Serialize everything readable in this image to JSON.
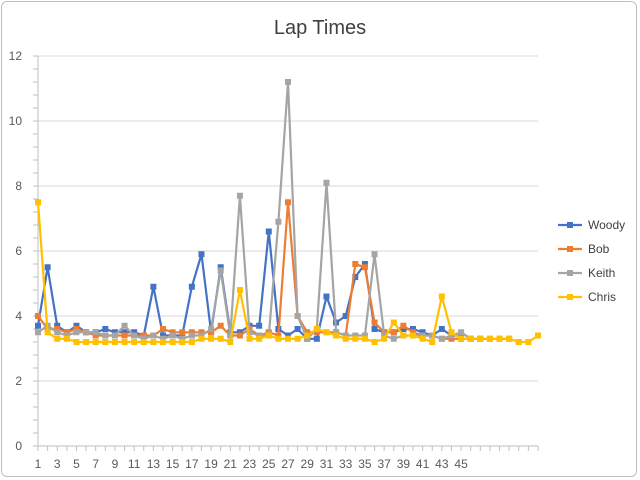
{
  "chart_data": {
    "type": "line",
    "title": "Lap Times",
    "xlabel": "",
    "ylabel": "",
    "ylim": [
      0,
      12
    ],
    "yticks": [
      0,
      2,
      4,
      6,
      8,
      10,
      12
    ],
    "xlim": [
      1,
      53
    ],
    "xtick_labels": [
      "1",
      "3",
      "5",
      "7",
      "9",
      "11",
      "13",
      "15",
      "17",
      "19",
      "21",
      "23",
      "25",
      "27",
      "29",
      "31",
      "33",
      "35",
      "37",
      "39",
      "41",
      "43",
      "45"
    ],
    "grid": true,
    "legend": "right",
    "series": [
      {
        "name": "Woody",
        "color": "#4472c4",
        "marker": "square",
        "values": [
          3.7,
          5.5,
          3.7,
          3.5,
          3.7,
          3.5,
          3.5,
          3.6,
          3.5,
          3.5,
          3.5,
          3.4,
          4.9,
          3.4,
          3.4,
          3.4,
          4.9,
          5.9,
          3.5,
          5.5,
          3.5,
          3.5,
          3.7,
          3.7,
          6.6,
          3.6,
          3.4,
          3.6,
          3.3,
          3.3,
          4.6,
          3.8,
          4.0,
          5.2,
          5.6,
          3.6,
          3.5,
          3.5,
          3.6,
          3.6,
          3.5,
          3.4,
          3.6,
          3.4,
          3.4
        ]
      },
      {
        "name": "Bob",
        "color": "#ed7d31",
        "marker": "square",
        "values": [
          4.0,
          3.6,
          3.6,
          3.5,
          3.6,
          3.5,
          3.4,
          3.4,
          3.4,
          3.4,
          3.4,
          3.4,
          3.4,
          3.6,
          3.5,
          3.5,
          3.5,
          3.5,
          3.5,
          3.7,
          3.4,
          3.4,
          3.6,
          3.4,
          3.5,
          3.4,
          7.5,
          4.0,
          3.5,
          3.5,
          3.5,
          3.5,
          3.4,
          5.6,
          5.5,
          3.8,
          3.5,
          3.5,
          3.7,
          3.5,
          3.4,
          3.4,
          3.3,
          3.3,
          3.3,
          3.3,
          3.3
        ]
      },
      {
        "name": "Keith",
        "color": "#a5a5a5",
        "marker": "square",
        "values": [
          3.5,
          3.7,
          3.5,
          3.4,
          3.5,
          3.5,
          3.5,
          3.4,
          3.4,
          3.7,
          3.4,
          3.3,
          3.4,
          3.3,
          3.4,
          3.3,
          3.4,
          3.4,
          3.6,
          5.4,
          3.4,
          7.7,
          3.5,
          3.4,
          3.4,
          6.9,
          11.2,
          4.0,
          3.3,
          3.6,
          8.1,
          3.5,
          3.4,
          3.4,
          3.4,
          5.9,
          3.4,
          3.3,
          3.4,
          3.4,
          3.4,
          3.4,
          3.3,
          3.4,
          3.5,
          3.3,
          3.3,
          3.3,
          3.3,
          3.3
        ]
      },
      {
        "name": "Chris",
        "color": "#ffc000",
        "marker": "square",
        "values": [
          7.5,
          3.5,
          3.3,
          3.3,
          3.2,
          3.2,
          3.2,
          3.2,
          3.2,
          3.2,
          3.2,
          3.2,
          3.2,
          3.2,
          3.2,
          3.2,
          3.2,
          3.3,
          3.3,
          3.3,
          3.2,
          4.8,
          3.3,
          3.3,
          3.4,
          3.3,
          3.3,
          3.3,
          3.4,
          3.6,
          3.5,
          3.4,
          3.3,
          3.3,
          3.3,
          3.2,
          3.3,
          3.8,
          3.4,
          3.4,
          3.3,
          3.2,
          4.6,
          3.5,
          3.3,
          3.3,
          3.3,
          3.3,
          3.3,
          3.3,
          3.2,
          3.2,
          3.4
        ]
      }
    ]
  }
}
